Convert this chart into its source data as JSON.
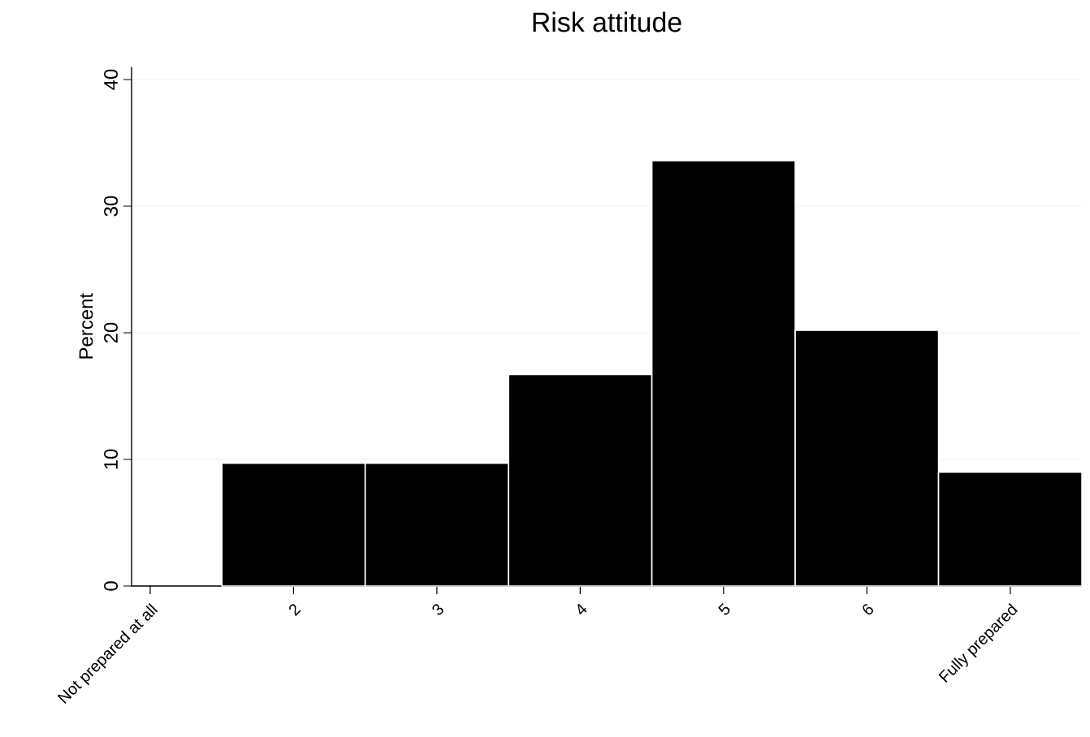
{
  "chart_data": {
    "type": "histogram",
    "title": "Risk attitude",
    "ylabel": "Percent",
    "bins": [
      1.5,
      2.5,
      3.5,
      4.5,
      5.5,
      6.5,
      7.5
    ],
    "values": [
      9.7,
      9.7,
      16.7,
      33.6,
      20.2,
      9.0
    ],
    "color": "#000000",
    "xlim": [
      0.87,
      7.5
    ],
    "ylim": [
      0,
      41
    ],
    "xticks": [
      {
        "value": 1,
        "label": "Not prepared at all"
      },
      2,
      3,
      4,
      5,
      6,
      {
        "value": 7,
        "label": "Fully prepared"
      }
    ],
    "yticks": [
      0,
      10,
      20,
      30,
      40
    ],
    "grid": "y"
  }
}
